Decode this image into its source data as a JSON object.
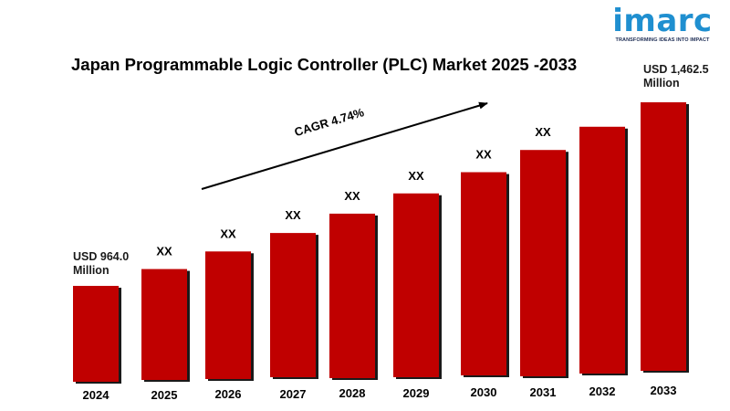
{
  "logo": {
    "wordmark": "imarc",
    "tagline": "TRANSFORMING IDEAS INTO IMPACT"
  },
  "chart_data": {
    "type": "bar",
    "title": "Japan Programmable Logic Controller (PLC) Market 2025 -2033",
    "categories": [
      "2024",
      "2025",
      "2026",
      "2027",
      "2028",
      "2029",
      "2030",
      "2031",
      "2032",
      "2033"
    ],
    "values": [
      964.0,
      1009.7,
      1057.5,
      1107.6,
      1160.1,
      1215.1,
      1272.7,
      1333.0,
      1396.1,
      1462.5
    ],
    "data_labels": [
      "USD 964.0 Million",
      "XX",
      "XX",
      "XX",
      "XX",
      "XX",
      "XX",
      "XX",
      "",
      "USD 1,462.5 Million"
    ],
    "annotation": "CAGR 4.74%",
    "bar_color": "#c00000",
    "axis_visible": false
  }
}
